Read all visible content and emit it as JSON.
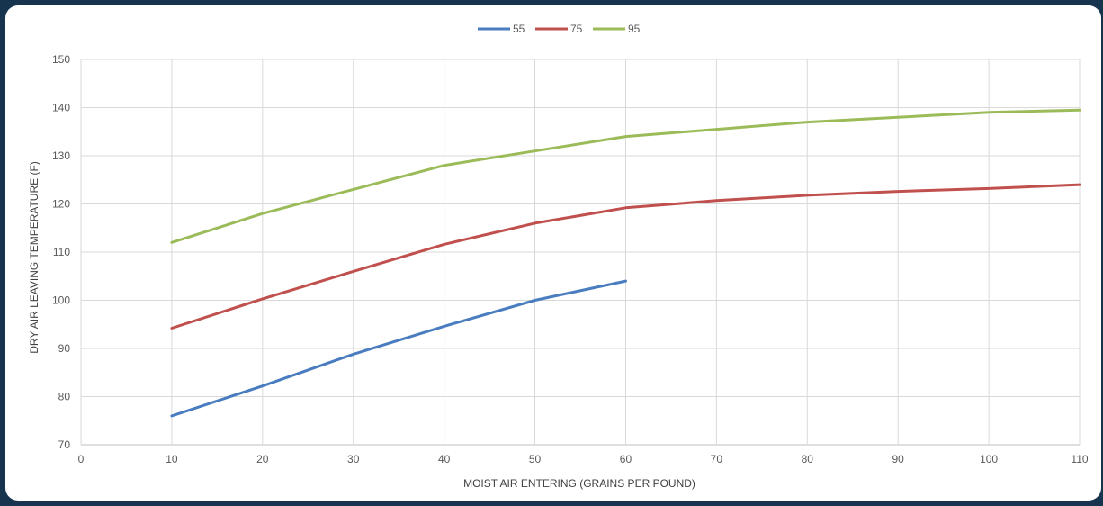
{
  "chart_data": {
    "type": "line",
    "title": "",
    "xlabel": "MOIST AIR ENTERING (GRAINS PER POUND)",
    "ylabel": "DRY AIR LEAVING TEMPERATURE (F)",
    "xlim": [
      0,
      110
    ],
    "ylim": [
      70,
      150
    ],
    "xticks": [
      0,
      10,
      20,
      30,
      40,
      50,
      60,
      70,
      80,
      90,
      100,
      110
    ],
    "yticks": [
      70,
      80,
      90,
      100,
      110,
      120,
      130,
      140,
      150
    ],
    "grid": true,
    "legend_position": "top-center",
    "series": [
      {
        "name": "55",
        "color": "#4a7dbf",
        "x": [
          10,
          20,
          30,
          40,
          50,
          60
        ],
        "values": [
          76,
          82.2,
          88.8,
          94.6,
          100,
          104
        ]
      },
      {
        "name": "75",
        "color": "#c0504d",
        "x": [
          10,
          20,
          30,
          40,
          50,
          60,
          70,
          80,
          90,
          100,
          110
        ],
        "values": [
          94.2,
          100.3,
          106,
          111.6,
          116,
          119.2,
          120.7,
          121.8,
          122.6,
          123.2,
          124
        ]
      },
      {
        "name": "95",
        "color": "#9bbb59",
        "x": [
          10,
          20,
          30,
          40,
          50,
          60,
          70,
          80,
          90,
          100,
          110
        ],
        "values": [
          112,
          118,
          123,
          128,
          131,
          134,
          135.5,
          137,
          138,
          139,
          139.5
        ]
      }
    ]
  }
}
